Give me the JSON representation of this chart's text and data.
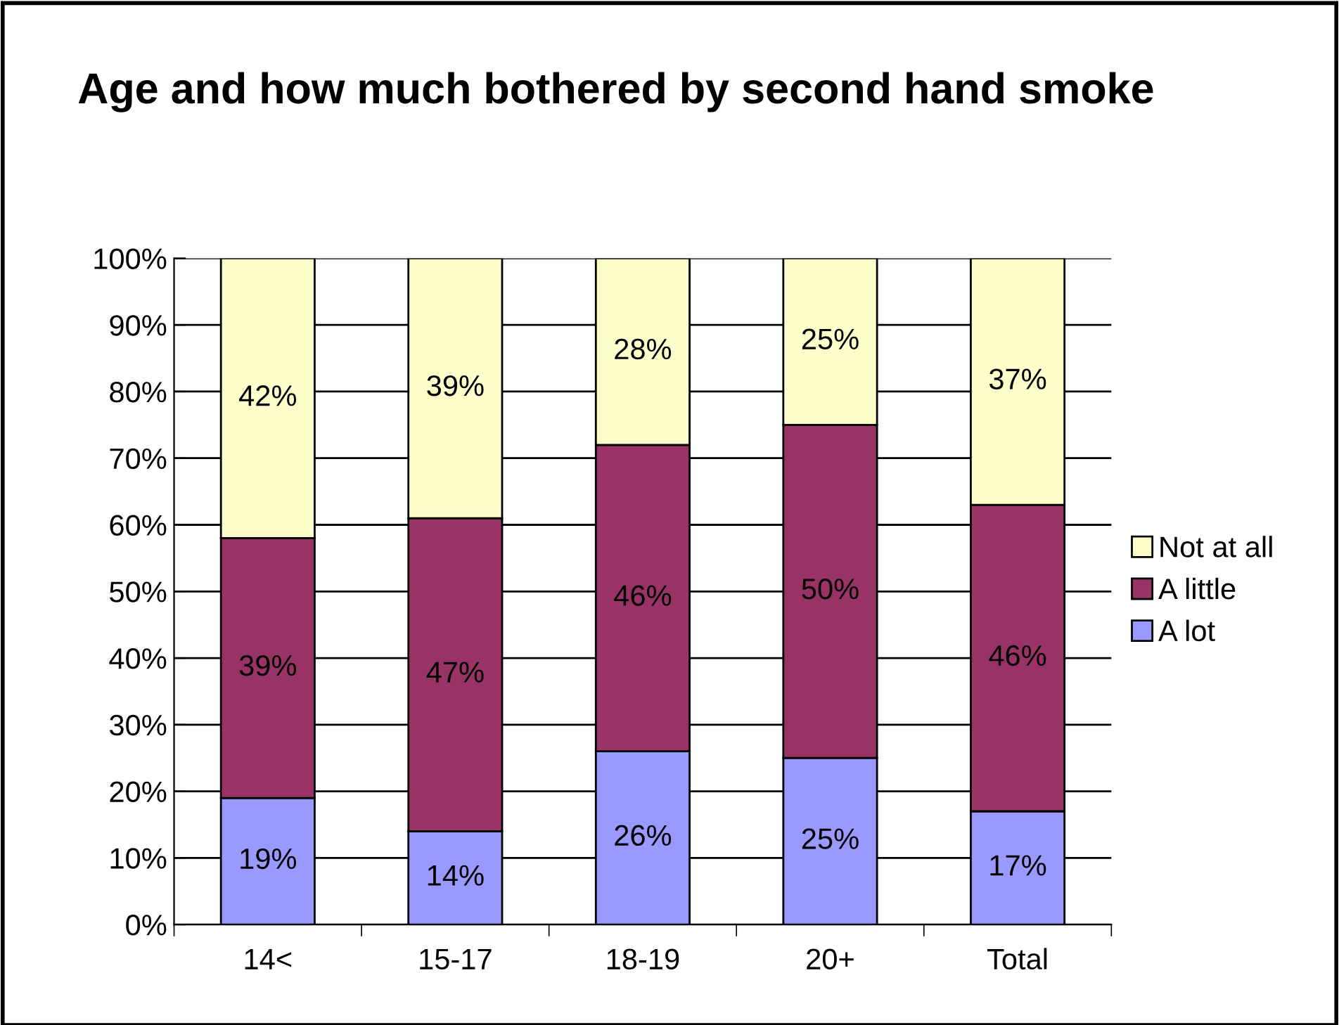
{
  "chart_data": {
    "type": "bar",
    "stacked": true,
    "title": "Age and how much bothered by second hand smoke",
    "categories": [
      "14<",
      "15-17",
      "18-19",
      "20+",
      "Total"
    ],
    "series": [
      {
        "name": "A lot",
        "color": "#9999ff",
        "values": [
          19,
          14,
          26,
          25,
          17
        ],
        "value_labels": [
          "19%",
          "14%",
          "26%",
          "25%",
          "17%"
        ]
      },
      {
        "name": "A little",
        "color": "#993366",
        "values": [
          39,
          47,
          46,
          50,
          46
        ],
        "value_labels": [
          "39%",
          "47%",
          "46%",
          "50%",
          "46%"
        ]
      },
      {
        "name": "Not at all",
        "color": "#ffffcc",
        "values": [
          42,
          39,
          28,
          25,
          37
        ],
        "value_labels": [
          "42%",
          "39%",
          "28%",
          "25%",
          "37%"
        ]
      }
    ],
    "ylim": [
      0,
      100
    ],
    "yticks": [
      {
        "value": 0,
        "label": "0%"
      },
      {
        "value": 10,
        "label": "10%"
      },
      {
        "value": 20,
        "label": "20%"
      },
      {
        "value": 30,
        "label": "30%"
      },
      {
        "value": 40,
        "label": "40%"
      },
      {
        "value": 50,
        "label": "50%"
      },
      {
        "value": 60,
        "label": "60%"
      },
      {
        "value": 70,
        "label": "70%"
      },
      {
        "value": 80,
        "label": "80%"
      },
      {
        "value": 90,
        "label": "90%"
      },
      {
        "value": 100,
        "label": "100%"
      }
    ],
    "grid": "y",
    "legend": "right"
  }
}
